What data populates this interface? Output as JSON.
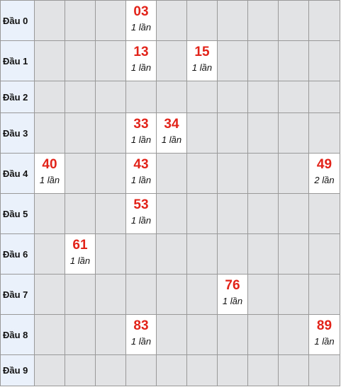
{
  "row_labels": [
    "Đầu 0",
    "Đầu 1",
    "Đầu 2",
    "Đầu 3",
    "Đầu 4",
    "Đầu 5",
    "Đầu 6",
    "Đầu 7",
    "Đầu 8",
    "Đầu 9"
  ],
  "cells": [
    {
      "row": 0,
      "col": 3,
      "number": "03",
      "count": "1 lần"
    },
    {
      "row": 1,
      "col": 3,
      "number": "13",
      "count": "1 lần"
    },
    {
      "row": 1,
      "col": 5,
      "number": "15",
      "count": "1 lần"
    },
    {
      "row": 3,
      "col": 3,
      "number": "33",
      "count": "1 lần"
    },
    {
      "row": 3,
      "col": 4,
      "number": "34",
      "count": "1 lần"
    },
    {
      "row": 4,
      "col": 0,
      "number": "40",
      "count": "1 lần"
    },
    {
      "row": 4,
      "col": 3,
      "number": "43",
      "count": "1 lần"
    },
    {
      "row": 4,
      "col": 9,
      "number": "49",
      "count": "2 lần"
    },
    {
      "row": 5,
      "col": 3,
      "number": "53",
      "count": "1 lần"
    },
    {
      "row": 6,
      "col": 1,
      "number": "61",
      "count": "1 lần"
    },
    {
      "row": 7,
      "col": 6,
      "number": "76",
      "count": "1 lần"
    },
    {
      "row": 8,
      "col": 3,
      "number": "83",
      "count": "1 lần"
    },
    {
      "row": 8,
      "col": 9,
      "number": "89",
      "count": "1 lần"
    }
  ],
  "colors": {
    "number": "#e2231a",
    "header_bg": "#eaf1fa",
    "empty_bg": "#e2e3e5",
    "hit_bg": "#ffffff",
    "grid_line": "#999999"
  }
}
